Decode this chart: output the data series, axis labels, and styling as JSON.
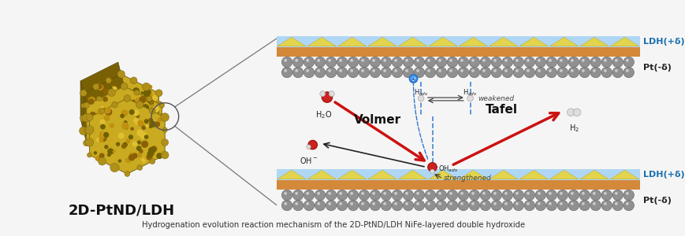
{
  "title": "2D-PtND/LDH",
  "caption": "Hydrogenation evolution reaction mechanism of the 2D-PtND/LDH NiFe-layered double hydroxide",
  "bg_color": "#f5f5f5",
  "ldh_blue": "#a8d4f5",
  "ldh_yellow": "#e8d440",
  "ldh_orange": "#d4883a",
  "pt_gray": "#909090",
  "pt_dark": "#606060",
  "arrow_red": "#cc1111",
  "arrow_black": "#222222",
  "blue_dash": "#3377cc",
  "text_ldh_plus": "LDH(+δ)",
  "text_pt_minus": "Pt(-δ)",
  "label_ldh_color": "#1a6faf",
  "label_pt_color": "#222222",
  "text_volmer": "Volmer",
  "text_tafel": "Tafel",
  "text_weakened": "weakened",
  "text_strengthened": "strengthened",
  "text_hads": "H$_{ads}$",
  "text_ohads": "OH$_{ads}$",
  "text_h2o": "H$_2$O",
  "text_oh": "OH$^-$",
  "text_h2": "H$_2$",
  "hex_gold": "#c8a820",
  "hex_dark": "#8a6a08",
  "hex_side": "#7a6208"
}
